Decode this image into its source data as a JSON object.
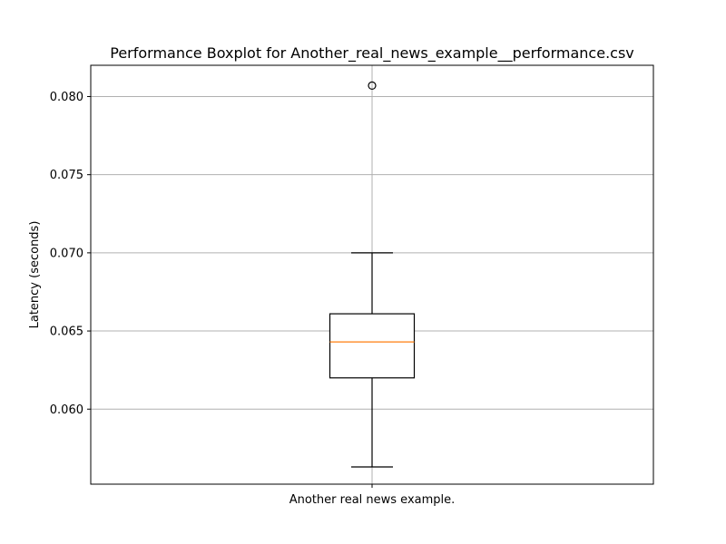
{
  "chart_data": {
    "type": "box",
    "title": "Performance Boxplot for Another_real_news_example__performance.csv",
    "xlabel": "",
    "ylabel": "Latency (seconds)",
    "categories": [
      "Another real news example."
    ],
    "boxes": [
      {
        "category": "Another real news example.",
        "whisker_low": 0.0563,
        "q1": 0.062,
        "median": 0.0643,
        "q3": 0.0661,
        "whisker_high": 0.07,
        "outliers": [
          0.0807
        ]
      }
    ],
    "ylim": [
      0.0552,
      0.082
    ],
    "yticks": [
      "0.060",
      "0.065",
      "0.070",
      "0.075",
      "0.080"
    ],
    "grid": true,
    "colors": {
      "box": "#000000",
      "median": "#ff7f0e",
      "grid": "#b0b0b0"
    }
  }
}
